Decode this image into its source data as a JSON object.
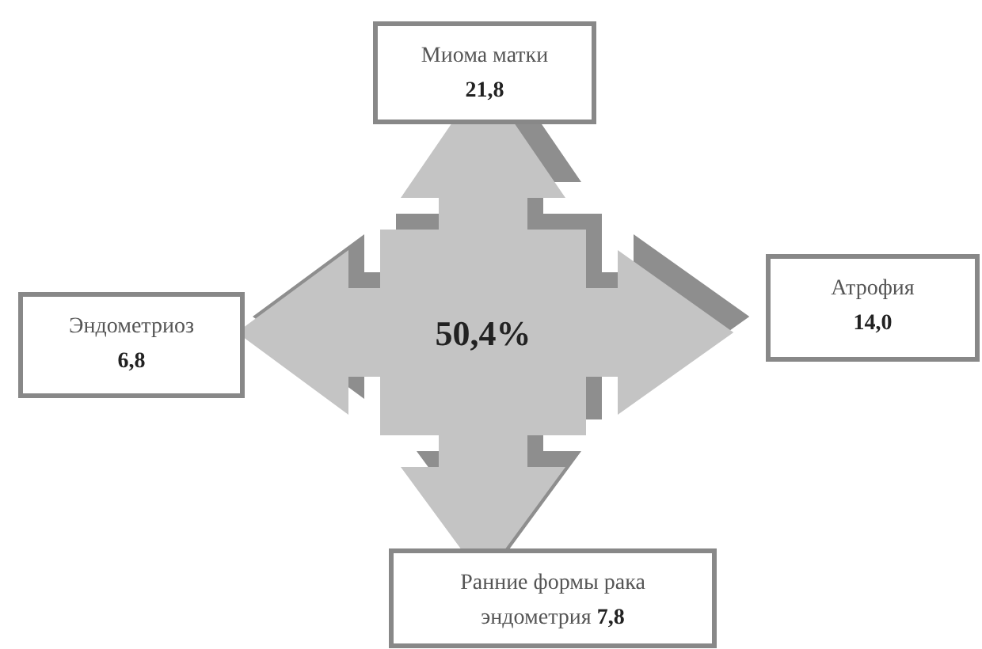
{
  "chart_data": {
    "type": "other",
    "categories": [
      "Миома матки",
      "Атрофия",
      "Ранние формы рака эндометрия",
      "Эндометриоз"
    ],
    "values": [
      21.8,
      14.0,
      7.8,
      6.8
    ],
    "value_labels": [
      "21,8",
      "14,0",
      "7,8",
      "6,8"
    ],
    "totals": [
      "50,4%"
    ]
  }
}
